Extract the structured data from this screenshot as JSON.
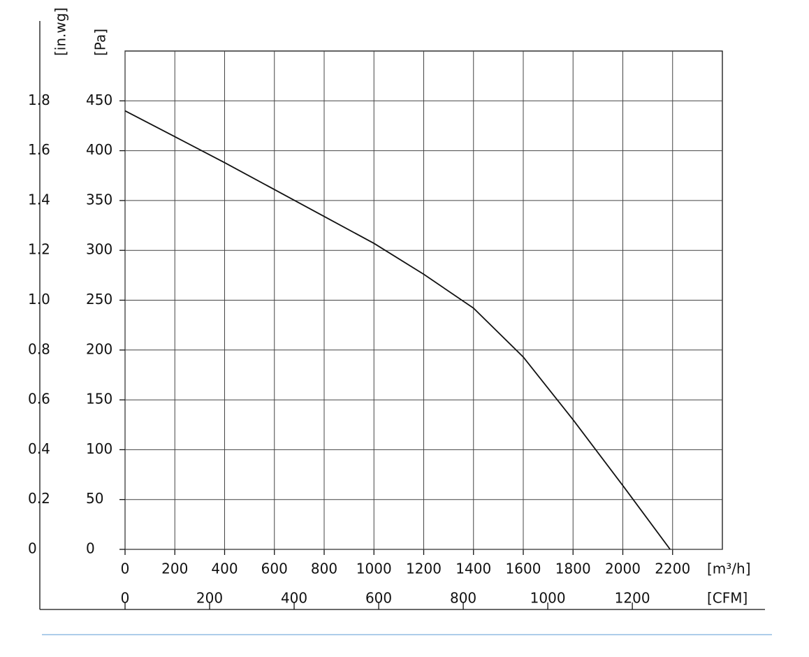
{
  "chart_data": {
    "type": "line",
    "x_label": "[m³/h]",
    "x2_label": "[CFM]",
    "y_label": "[Pa]",
    "y2_label": "[in.wg]",
    "x": [
      0,
      200,
      400,
      600,
      800,
      1000,
      1200,
      1400,
      1600,
      1800,
      2000,
      2190
    ],
    "series": [
      {
        "color": "#111111",
        "values": [
          440,
          414,
          388,
          361,
          334,
          307,
          276,
          242,
          193,
          130,
          64,
          0
        ]
      }
    ],
    "xlim": [
      0,
      2400
    ],
    "xticks": [
      0,
      200,
      400,
      600,
      800,
      1000,
      1200,
      1400,
      1600,
      1800,
      2000,
      2200
    ],
    "x2lim": [
      0,
      1413
    ],
    "x2ticks": [
      0,
      200,
      400,
      600,
      800,
      1000,
      1200
    ],
    "ylim": [
      0,
      500
    ],
    "yticks": [
      0,
      50,
      100,
      150,
      200,
      250,
      300,
      350,
      400,
      450
    ],
    "y2lim": [
      0,
      2.0
    ],
    "y2ticks": [
      0,
      0.2,
      0.4,
      0.6,
      0.8,
      {
        "value": 1.0,
        "label": "1.0"
      },
      1.2,
      1.4,
      1.6,
      1.8
    ],
    "grid": true
  }
}
